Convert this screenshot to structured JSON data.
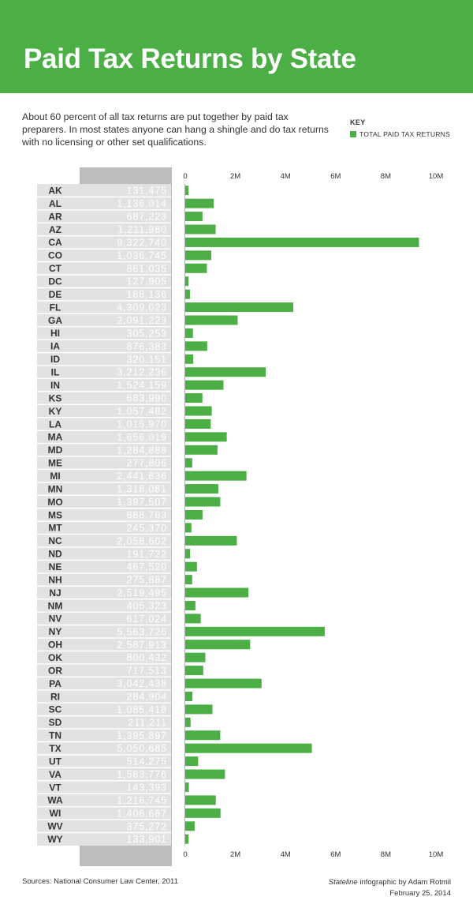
{
  "header": {
    "title": "Paid Tax Returns by State"
  },
  "intro": "About 60 percent of all tax returns are put together by paid tax preparers. In most states anyone can hang a shingle and do tax returns with no licensing or other set qualifications.",
  "key": {
    "title": "KEY",
    "item": "TOTAL PAID TAX RETURNS"
  },
  "footer": {
    "sources": "Sources: National Consumer Law Center, 2011",
    "credit_publication": "Stateline",
    "credit_rest": " infographic by Adam Rotmil",
    "date": "February 25, 2014"
  },
  "colors": {
    "bar": "#4caf45",
    "banner": "#4caf45"
  },
  "chart_data": {
    "type": "bar",
    "orientation": "horizontal",
    "xlim": [
      0,
      10000000
    ],
    "tick_values": [
      0,
      2000000,
      4000000,
      6000000,
      8000000,
      10000000
    ],
    "tick_labels": [
      "0",
      "2M",
      "4M",
      "6M",
      "8M",
      "10M"
    ],
    "series": [
      {
        "name": "TOTAL PAID TAX RETURNS"
      }
    ],
    "categories": [
      "AK",
      "AL",
      "AR",
      "AZ",
      "CA",
      "CO",
      "CT",
      "DC",
      "DE",
      "FL",
      "GA",
      "HI",
      "IA",
      "ID",
      "IL",
      "IN",
      "KS",
      "KY",
      "LA",
      "MA",
      "MD",
      "ME",
      "MI",
      "MN",
      "MO",
      "MS",
      "MT",
      "NC",
      "ND",
      "NE",
      "NH",
      "NJ",
      "NM",
      "NV",
      "NY",
      "OH",
      "OK",
      "OR",
      "PA",
      "RI",
      "SC",
      "SD",
      "TN",
      "TX",
      "UT",
      "VA",
      "VT",
      "WA",
      "WI",
      "WV",
      "WY"
    ],
    "values": [
      131475,
      1136014,
      687223,
      1211980,
      9322740,
      1036745,
      861035,
      127905,
      188136,
      4309023,
      2091223,
      305253,
      876383,
      320151,
      3212236,
      1524159,
      683990,
      1057482,
      1015970,
      1656019,
      1284888,
      277806,
      2441836,
      1318081,
      1397507,
      688763,
      245370,
      2058602,
      191722,
      467520,
      275887,
      2519495,
      405323,
      617024,
      5563726,
      2587913,
      800432,
      717513,
      3042438,
      284904,
      1085418,
      211211,
      1395897,
      5050685,
      514275,
      1583776,
      143393,
      1218745,
      1406687,
      375272,
      133901
    ],
    "value_labels": [
      "131,475",
      "1,136,014",
      "687,223",
      "1,211,980",
      "9,322,740",
      "1,036,745",
      "861,035",
      "127,905",
      "188,136",
      "4,309,023",
      "2,091,223",
      "305,253",
      "876,383",
      "320,151",
      "3,212,236",
      "1,524,159",
      "683,990",
      "1,057,482",
      "1,015,970",
      "1,656,019",
      "1,284,888",
      "277,806",
      "2,441,836",
      "1,318,081",
      "1,397,507",
      "688,763",
      "245,370",
      "2,058,602",
      "191,722",
      "467,520",
      "275,887",
      "2,519,495",
      "405,323",
      "617,024",
      "5,563,726",
      "2,587,913",
      "800,432",
      "717,513",
      "3,042,438",
      "284,904",
      "1,085,418",
      "211,211",
      "1,395,897",
      "5,050,685",
      "514,275",
      "1,583,776",
      "143,393",
      "1,218,745",
      "1,406,687",
      "375,272",
      "133,901"
    ]
  }
}
